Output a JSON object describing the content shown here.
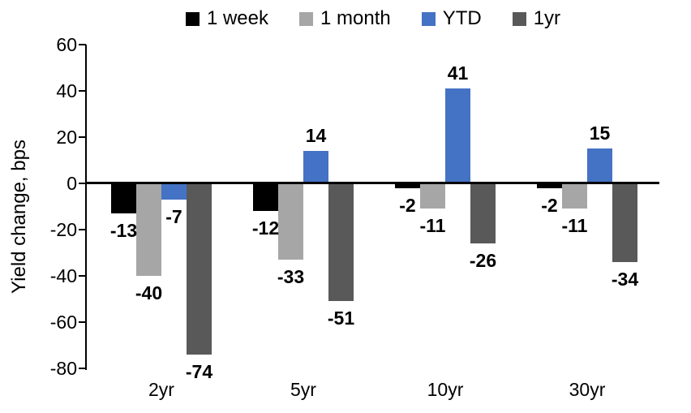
{
  "chart_data": {
    "type": "bar",
    "title": "",
    "xlabel": "",
    "ylabel": "Yield change, bps",
    "categories": [
      "2yr",
      "5yr",
      "10yr",
      "30yr"
    ],
    "series": [
      {
        "name": "1 week",
        "color": "#000000",
        "values": [
          -13,
          -12,
          -2,
          -2
        ]
      },
      {
        "name": "1 month",
        "color": "#A6A6A6",
        "values": [
          -40,
          -33,
          -11,
          -11
        ]
      },
      {
        "name": "YTD",
        "color": "#4472C4",
        "values": [
          -7,
          14,
          41,
          15
        ]
      },
      {
        "name": "1yr",
        "color": "#595959",
        "values": [
          -74,
          -51,
          -26,
          -34
        ]
      }
    ],
    "ylim": [
      -80,
      60
    ],
    "tick_step": 20,
    "y_ticks": [
      60,
      40,
      20,
      0,
      -20,
      -40,
      -60,
      -80
    ],
    "grid": "off",
    "legend_position": "top",
    "data_labels": "outside-end",
    "axis_color": "#000000",
    "background_color": "#FFFFFF"
  }
}
